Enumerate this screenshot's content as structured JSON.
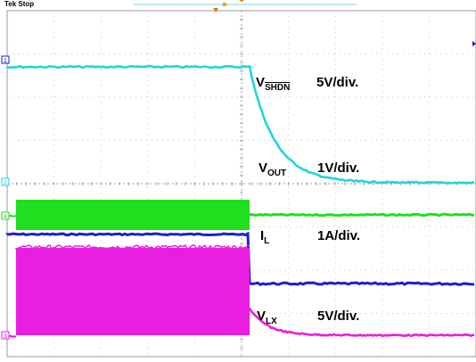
{
  "header": {
    "status": "Tek Stop"
  },
  "channels": [
    {
      "id": "ch1",
      "marker": "1",
      "color": "#1e1ed2"
    },
    {
      "id": "ch2",
      "marker": "2",
      "color": "#22d3e0"
    },
    {
      "id": "ch4",
      "marker": "4",
      "color": "#1ee01e"
    },
    {
      "id": "ch3",
      "marker": "3",
      "color": "#e81ee0"
    }
  ],
  "labels": {
    "vshdn": {
      "main": "V",
      "sub": "SHDN",
      "scale": "5V/div."
    },
    "vout": {
      "main": "V",
      "sub": "OUT",
      "scale": "1V/div."
    },
    "il": {
      "main": "I",
      "sub": "L",
      "scale": "1A/div."
    },
    "vlx": {
      "main": "V",
      "sub": "LX",
      "scale": "5V/div."
    }
  },
  "chart_data": {
    "type": "line",
    "grid": true,
    "divisions": {
      "x": 10,
      "y": 8
    },
    "series": [
      {
        "id": "ch1",
        "high": 3.2,
        "low": 2.1
      },
      {
        "id": "ch2",
        "high": 2.1,
        "low": 0.0
      },
      {
        "id": "ch4",
        "active_band": [
          0.7,
          1.45
        ],
        "settled": 1.15
      },
      {
        "id": "ch3",
        "active_band": [
          0.0,
          4.0
        ],
        "settled": 0.0
      }
    ],
    "trigger_division": 5.4
  }
}
